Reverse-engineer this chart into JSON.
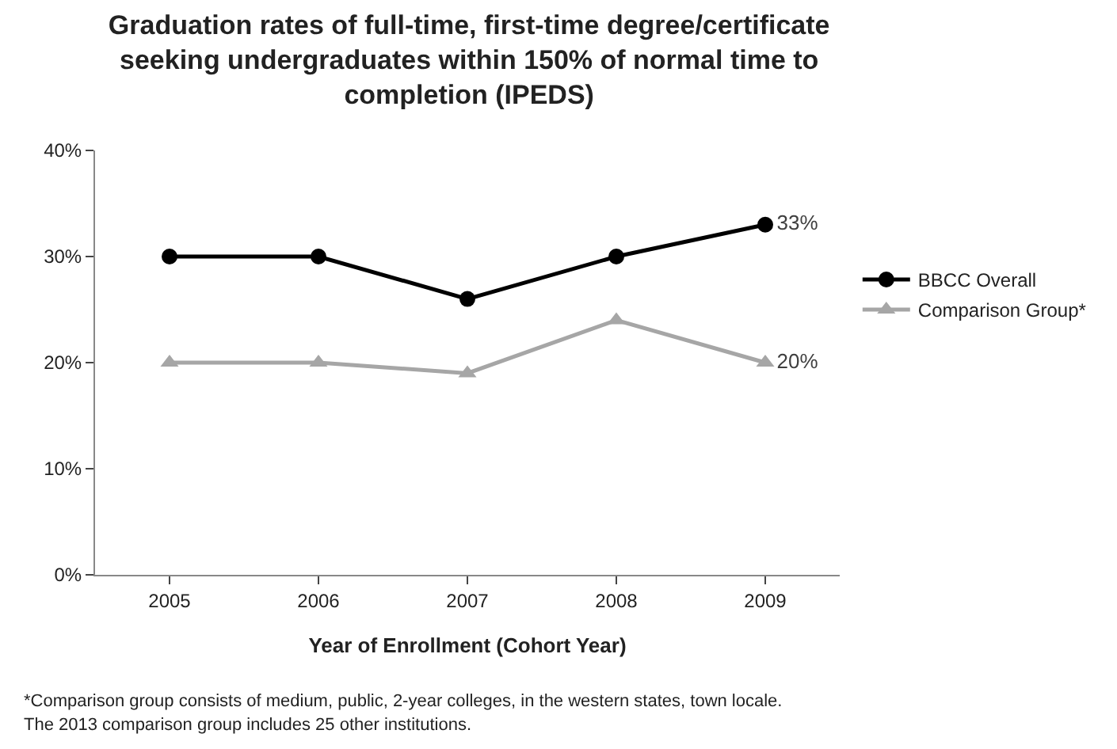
{
  "chart_data": {
    "type": "line",
    "title": "Graduation rates of full-time, first-time degree/certificate seeking undergraduates within 150% of normal time to completion (IPEDS)",
    "xlabel": "Year of Enrollment (Cohort Year)",
    "categories": [
      "2005",
      "2006",
      "2007",
      "2008",
      "2009"
    ],
    "series": [
      {
        "name": "BBCC Overall",
        "color": "#000000",
        "marker": "circle",
        "values": [
          30,
          30,
          26,
          30,
          33
        ],
        "value_labels": [
          null,
          null,
          null,
          null,
          "33%"
        ]
      },
      {
        "name": "Comparison Group*",
        "color": "#a6a6a6",
        "marker": "triangle",
        "values": [
          20,
          20,
          19,
          24,
          20
        ],
        "value_labels": [
          null,
          null,
          null,
          null,
          "20%"
        ]
      }
    ],
    "ylim": [
      0,
      40
    ],
    "yticks": [
      {
        "value": 0,
        "label": "0%"
      },
      {
        "value": 10,
        "label": "10%"
      },
      {
        "value": 20,
        "label": "20%"
      },
      {
        "value": 30,
        "label": "30%"
      },
      {
        "value": 40,
        "label": "40%"
      }
    ],
    "grid": false,
    "legend": "right",
    "line_style": "solid",
    "annotations": [
      "*Comparison group consists of medium, public, 2-year colleges, in the western states, town locale.",
      "The 2013 comparison group includes 25 other institutions."
    ]
  }
}
